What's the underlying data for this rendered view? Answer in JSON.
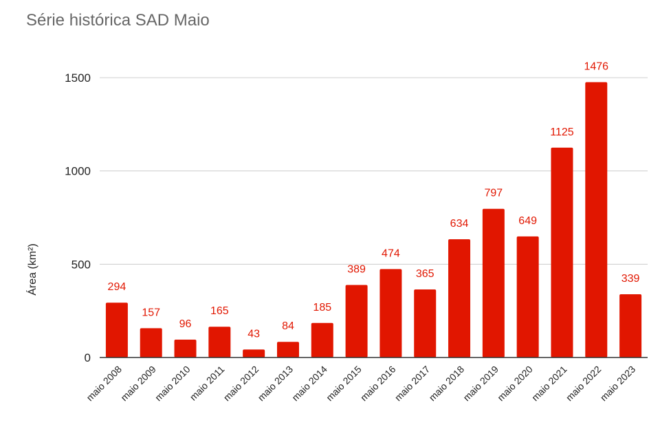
{
  "chart_data": {
    "type": "bar",
    "title": "Série histórica SAD Maio",
    "xlabel": "",
    "ylabel": "Área (km²)",
    "ylim": [
      0,
      1500
    ],
    "yticks": [
      0,
      500,
      1000,
      1500
    ],
    "grid": true,
    "legend": "none",
    "categories": [
      "maio 2008",
      "maio 2009",
      "maio 2010",
      "maio 2011",
      "maio 2012",
      "maio 2013",
      "maio 2014",
      "maio 2015",
      "maio 2016",
      "maio 2017",
      "maio 2018",
      "maio 2019",
      "maio 2020",
      "maio 2021",
      "maio 2022",
      "maio 2023"
    ],
    "values": [
      294,
      157,
      96,
      165,
      43,
      84,
      185,
      389,
      474,
      365,
      634,
      797,
      649,
      1125,
      1476,
      339
    ],
    "bar_color": "#e11600",
    "label_color": "#e11600"
  }
}
